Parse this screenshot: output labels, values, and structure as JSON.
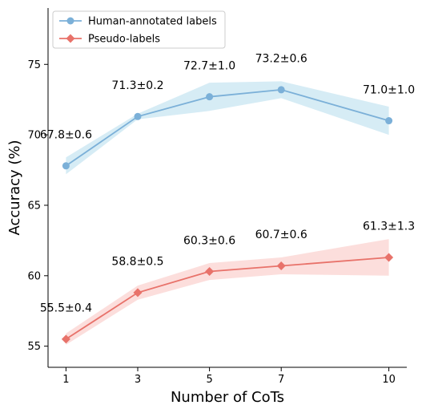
{
  "chart_data": {
    "type": "line",
    "xlabel": "Number of CoTs",
    "ylabel": "Accuracy (%)",
    "x": [
      1,
      3,
      5,
      7,
      10
    ],
    "x_ticks": [
      "1",
      "3",
      "5",
      "7",
      "10"
    ],
    "y_ticks": [
      "55",
      "60",
      "65",
      "70",
      "75"
    ],
    "xlim": [
      0.5,
      10.5
    ],
    "ylim": [
      53.5,
      79.0
    ],
    "grid": false,
    "legend_position": "top-left",
    "series": [
      {
        "name": "Human-annotated labels",
        "color": "#7bb0d8",
        "band_color": "#c8e6f1",
        "marker": "circle",
        "values": [
          67.8,
          71.3,
          72.7,
          73.2,
          71.0
        ],
        "std": [
          0.6,
          0.2,
          1.0,
          0.6,
          1.0
        ],
        "labels": [
          "67.8±0.6",
          "71.3±0.2",
          "72.7±1.0",
          "73.2±0.6",
          "71.0±1.0"
        ]
      },
      {
        "name": "Pseudo-labels",
        "color": "#e8726a",
        "band_color": "#fbd3d0",
        "marker": "diamond",
        "values": [
          55.5,
          58.8,
          60.3,
          60.7,
          61.3
        ],
        "std": [
          0.4,
          0.5,
          0.6,
          0.6,
          1.3
        ],
        "labels": [
          "55.5±0.4",
          "58.8±0.5",
          "60.3±0.6",
          "60.7±0.6",
          "61.3±1.3"
        ]
      }
    ]
  }
}
